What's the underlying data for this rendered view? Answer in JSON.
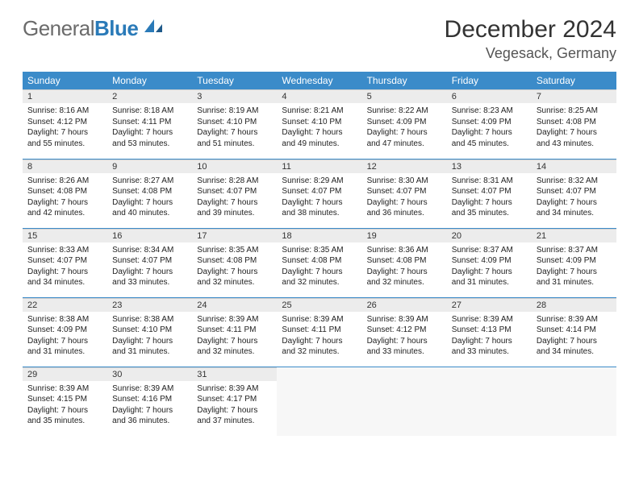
{
  "logo": {
    "general": "General",
    "blue": "Blue"
  },
  "title": "December 2024",
  "location": "Vegesack, Germany",
  "colors": {
    "header_bg": "#3b8bc9",
    "header_text": "#ffffff",
    "daynum_bg": "#ececec",
    "row_border": "#3b8bc9",
    "logo_gray": "#6b6b6b",
    "logo_blue": "#2a7ab8"
  },
  "weekdays": [
    "Sunday",
    "Monday",
    "Tuesday",
    "Wednesday",
    "Thursday",
    "Friday",
    "Saturday"
  ],
  "weeks": [
    [
      {
        "n": "1",
        "sr": "Sunrise: 8:16 AM",
        "ss": "Sunset: 4:12 PM",
        "dl": "Daylight: 7 hours and 55 minutes."
      },
      {
        "n": "2",
        "sr": "Sunrise: 8:18 AM",
        "ss": "Sunset: 4:11 PM",
        "dl": "Daylight: 7 hours and 53 minutes."
      },
      {
        "n": "3",
        "sr": "Sunrise: 8:19 AM",
        "ss": "Sunset: 4:10 PM",
        "dl": "Daylight: 7 hours and 51 minutes."
      },
      {
        "n": "4",
        "sr": "Sunrise: 8:21 AM",
        "ss": "Sunset: 4:10 PM",
        "dl": "Daylight: 7 hours and 49 minutes."
      },
      {
        "n": "5",
        "sr": "Sunrise: 8:22 AM",
        "ss": "Sunset: 4:09 PM",
        "dl": "Daylight: 7 hours and 47 minutes."
      },
      {
        "n": "6",
        "sr": "Sunrise: 8:23 AM",
        "ss": "Sunset: 4:09 PM",
        "dl": "Daylight: 7 hours and 45 minutes."
      },
      {
        "n": "7",
        "sr": "Sunrise: 8:25 AM",
        "ss": "Sunset: 4:08 PM",
        "dl": "Daylight: 7 hours and 43 minutes."
      }
    ],
    [
      {
        "n": "8",
        "sr": "Sunrise: 8:26 AM",
        "ss": "Sunset: 4:08 PM",
        "dl": "Daylight: 7 hours and 42 minutes."
      },
      {
        "n": "9",
        "sr": "Sunrise: 8:27 AM",
        "ss": "Sunset: 4:08 PM",
        "dl": "Daylight: 7 hours and 40 minutes."
      },
      {
        "n": "10",
        "sr": "Sunrise: 8:28 AM",
        "ss": "Sunset: 4:07 PM",
        "dl": "Daylight: 7 hours and 39 minutes."
      },
      {
        "n": "11",
        "sr": "Sunrise: 8:29 AM",
        "ss": "Sunset: 4:07 PM",
        "dl": "Daylight: 7 hours and 38 minutes."
      },
      {
        "n": "12",
        "sr": "Sunrise: 8:30 AM",
        "ss": "Sunset: 4:07 PM",
        "dl": "Daylight: 7 hours and 36 minutes."
      },
      {
        "n": "13",
        "sr": "Sunrise: 8:31 AM",
        "ss": "Sunset: 4:07 PM",
        "dl": "Daylight: 7 hours and 35 minutes."
      },
      {
        "n": "14",
        "sr": "Sunrise: 8:32 AM",
        "ss": "Sunset: 4:07 PM",
        "dl": "Daylight: 7 hours and 34 minutes."
      }
    ],
    [
      {
        "n": "15",
        "sr": "Sunrise: 8:33 AM",
        "ss": "Sunset: 4:07 PM",
        "dl": "Daylight: 7 hours and 34 minutes."
      },
      {
        "n": "16",
        "sr": "Sunrise: 8:34 AM",
        "ss": "Sunset: 4:07 PM",
        "dl": "Daylight: 7 hours and 33 minutes."
      },
      {
        "n": "17",
        "sr": "Sunrise: 8:35 AM",
        "ss": "Sunset: 4:08 PM",
        "dl": "Daylight: 7 hours and 32 minutes."
      },
      {
        "n": "18",
        "sr": "Sunrise: 8:35 AM",
        "ss": "Sunset: 4:08 PM",
        "dl": "Daylight: 7 hours and 32 minutes."
      },
      {
        "n": "19",
        "sr": "Sunrise: 8:36 AM",
        "ss": "Sunset: 4:08 PM",
        "dl": "Daylight: 7 hours and 32 minutes."
      },
      {
        "n": "20",
        "sr": "Sunrise: 8:37 AM",
        "ss": "Sunset: 4:09 PM",
        "dl": "Daylight: 7 hours and 31 minutes."
      },
      {
        "n": "21",
        "sr": "Sunrise: 8:37 AM",
        "ss": "Sunset: 4:09 PM",
        "dl": "Daylight: 7 hours and 31 minutes."
      }
    ],
    [
      {
        "n": "22",
        "sr": "Sunrise: 8:38 AM",
        "ss": "Sunset: 4:09 PM",
        "dl": "Daylight: 7 hours and 31 minutes."
      },
      {
        "n": "23",
        "sr": "Sunrise: 8:38 AM",
        "ss": "Sunset: 4:10 PM",
        "dl": "Daylight: 7 hours and 31 minutes."
      },
      {
        "n": "24",
        "sr": "Sunrise: 8:39 AM",
        "ss": "Sunset: 4:11 PM",
        "dl": "Daylight: 7 hours and 32 minutes."
      },
      {
        "n": "25",
        "sr": "Sunrise: 8:39 AM",
        "ss": "Sunset: 4:11 PM",
        "dl": "Daylight: 7 hours and 32 minutes."
      },
      {
        "n": "26",
        "sr": "Sunrise: 8:39 AM",
        "ss": "Sunset: 4:12 PM",
        "dl": "Daylight: 7 hours and 33 minutes."
      },
      {
        "n": "27",
        "sr": "Sunrise: 8:39 AM",
        "ss": "Sunset: 4:13 PM",
        "dl": "Daylight: 7 hours and 33 minutes."
      },
      {
        "n": "28",
        "sr": "Sunrise: 8:39 AM",
        "ss": "Sunset: 4:14 PM",
        "dl": "Daylight: 7 hours and 34 minutes."
      }
    ],
    [
      {
        "n": "29",
        "sr": "Sunrise: 8:39 AM",
        "ss": "Sunset: 4:15 PM",
        "dl": "Daylight: 7 hours and 35 minutes."
      },
      {
        "n": "30",
        "sr": "Sunrise: 8:39 AM",
        "ss": "Sunset: 4:16 PM",
        "dl": "Daylight: 7 hours and 36 minutes."
      },
      {
        "n": "31",
        "sr": "Sunrise: 8:39 AM",
        "ss": "Sunset: 4:17 PM",
        "dl": "Daylight: 7 hours and 37 minutes."
      },
      null,
      null,
      null,
      null
    ]
  ]
}
